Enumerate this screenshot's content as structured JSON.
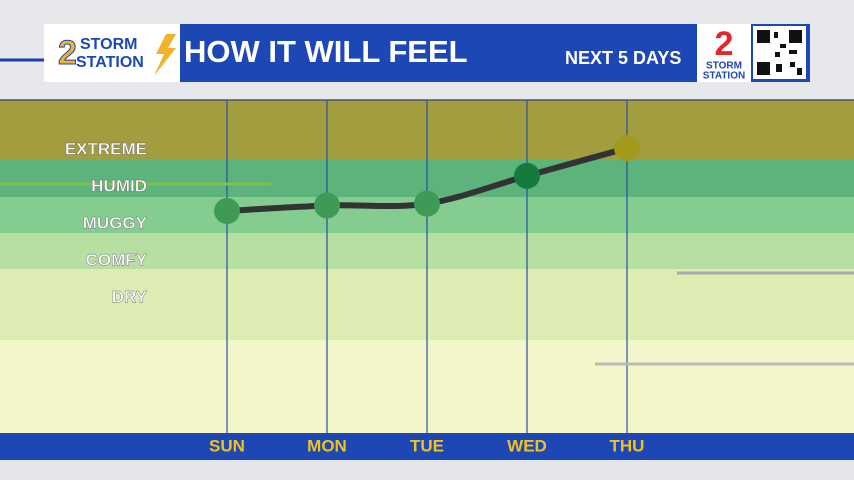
{
  "branding": {
    "number": "2",
    "line1": "STORM",
    "line2": "STATION"
  },
  "chart_data": {
    "type": "line",
    "title": "HOW IT WILL FEEL",
    "subtitle": "NEXT 5 DAYS",
    "categories": [
      "SUN",
      "MON",
      "TUE",
      "WED",
      "THU"
    ],
    "series": [
      {
        "name": "How it will feel",
        "color": "#333333",
        "values": [
          3.35,
          3.5,
          3.55,
          4.3,
          5.05
        ],
        "point_colors": [
          "#3f9a55",
          "#3f9a55",
          "#3f9a55",
          "#167a3e",
          "#a39a1c"
        ]
      }
    ],
    "ylim": [
      -2.65,
      6.35
    ],
    "yticks": [
      {
        "value": 5,
        "label": "EXTREME"
      },
      {
        "value": 4,
        "label": "HUMID"
      },
      {
        "value": 3,
        "label": "MUGGY"
      },
      {
        "value": 2,
        "label": "COMFY"
      },
      {
        "value": 1,
        "label": "DRY"
      }
    ]
  }
}
